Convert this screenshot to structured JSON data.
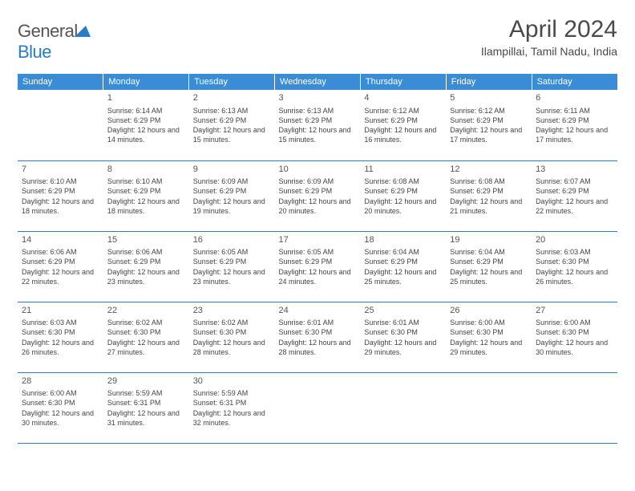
{
  "brand": {
    "text1": "General",
    "text2": "Blue"
  },
  "title": {
    "month": "April 2024",
    "location": "Ilampillai, Tamil Nadu, India"
  },
  "colors": {
    "header_bg": "#3a8cd6",
    "border": "#2a7cc7",
    "text": "#444444"
  },
  "typography": {
    "title_fontsize": 30,
    "header_fontsize": 11,
    "cell_fontsize": 9
  },
  "weekdays": [
    "Sunday",
    "Monday",
    "Tuesday",
    "Wednesday",
    "Thursday",
    "Friday",
    "Saturday"
  ],
  "rows": [
    [
      {
        "day": "",
        "sunrise": "",
        "sunset": "",
        "daylight": ""
      },
      {
        "day": "1",
        "sunrise": "Sunrise: 6:14 AM",
        "sunset": "Sunset: 6:29 PM",
        "daylight": "Daylight: 12 hours and 14 minutes."
      },
      {
        "day": "2",
        "sunrise": "Sunrise: 6:13 AM",
        "sunset": "Sunset: 6:29 PM",
        "daylight": "Daylight: 12 hours and 15 minutes."
      },
      {
        "day": "3",
        "sunrise": "Sunrise: 6:13 AM",
        "sunset": "Sunset: 6:29 PM",
        "daylight": "Daylight: 12 hours and 15 minutes."
      },
      {
        "day": "4",
        "sunrise": "Sunrise: 6:12 AM",
        "sunset": "Sunset: 6:29 PM",
        "daylight": "Daylight: 12 hours and 16 minutes."
      },
      {
        "day": "5",
        "sunrise": "Sunrise: 6:12 AM",
        "sunset": "Sunset: 6:29 PM",
        "daylight": "Daylight: 12 hours and 17 minutes."
      },
      {
        "day": "6",
        "sunrise": "Sunrise: 6:11 AM",
        "sunset": "Sunset: 6:29 PM",
        "daylight": "Daylight: 12 hours and 17 minutes."
      }
    ],
    [
      {
        "day": "7",
        "sunrise": "Sunrise: 6:10 AM",
        "sunset": "Sunset: 6:29 PM",
        "daylight": "Daylight: 12 hours and 18 minutes."
      },
      {
        "day": "8",
        "sunrise": "Sunrise: 6:10 AM",
        "sunset": "Sunset: 6:29 PM",
        "daylight": "Daylight: 12 hours and 18 minutes."
      },
      {
        "day": "9",
        "sunrise": "Sunrise: 6:09 AM",
        "sunset": "Sunset: 6:29 PM",
        "daylight": "Daylight: 12 hours and 19 minutes."
      },
      {
        "day": "10",
        "sunrise": "Sunrise: 6:09 AM",
        "sunset": "Sunset: 6:29 PM",
        "daylight": "Daylight: 12 hours and 20 minutes."
      },
      {
        "day": "11",
        "sunrise": "Sunrise: 6:08 AM",
        "sunset": "Sunset: 6:29 PM",
        "daylight": "Daylight: 12 hours and 20 minutes."
      },
      {
        "day": "12",
        "sunrise": "Sunrise: 6:08 AM",
        "sunset": "Sunset: 6:29 PM",
        "daylight": "Daylight: 12 hours and 21 minutes."
      },
      {
        "day": "13",
        "sunrise": "Sunrise: 6:07 AM",
        "sunset": "Sunset: 6:29 PM",
        "daylight": "Daylight: 12 hours and 22 minutes."
      }
    ],
    [
      {
        "day": "14",
        "sunrise": "Sunrise: 6:06 AM",
        "sunset": "Sunset: 6:29 PM",
        "daylight": "Daylight: 12 hours and 22 minutes."
      },
      {
        "day": "15",
        "sunrise": "Sunrise: 6:06 AM",
        "sunset": "Sunset: 6:29 PM",
        "daylight": "Daylight: 12 hours and 23 minutes."
      },
      {
        "day": "16",
        "sunrise": "Sunrise: 6:05 AM",
        "sunset": "Sunset: 6:29 PM",
        "daylight": "Daylight: 12 hours and 23 minutes."
      },
      {
        "day": "17",
        "sunrise": "Sunrise: 6:05 AM",
        "sunset": "Sunset: 6:29 PM",
        "daylight": "Daylight: 12 hours and 24 minutes."
      },
      {
        "day": "18",
        "sunrise": "Sunrise: 6:04 AM",
        "sunset": "Sunset: 6:29 PM",
        "daylight": "Daylight: 12 hours and 25 minutes."
      },
      {
        "day": "19",
        "sunrise": "Sunrise: 6:04 AM",
        "sunset": "Sunset: 6:29 PM",
        "daylight": "Daylight: 12 hours and 25 minutes."
      },
      {
        "day": "20",
        "sunrise": "Sunrise: 6:03 AM",
        "sunset": "Sunset: 6:30 PM",
        "daylight": "Daylight: 12 hours and 26 minutes."
      }
    ],
    [
      {
        "day": "21",
        "sunrise": "Sunrise: 6:03 AM",
        "sunset": "Sunset: 6:30 PM",
        "daylight": "Daylight: 12 hours and 26 minutes."
      },
      {
        "day": "22",
        "sunrise": "Sunrise: 6:02 AM",
        "sunset": "Sunset: 6:30 PM",
        "daylight": "Daylight: 12 hours and 27 minutes."
      },
      {
        "day": "23",
        "sunrise": "Sunrise: 6:02 AM",
        "sunset": "Sunset: 6:30 PM",
        "daylight": "Daylight: 12 hours and 28 minutes."
      },
      {
        "day": "24",
        "sunrise": "Sunrise: 6:01 AM",
        "sunset": "Sunset: 6:30 PM",
        "daylight": "Daylight: 12 hours and 28 minutes."
      },
      {
        "day": "25",
        "sunrise": "Sunrise: 6:01 AM",
        "sunset": "Sunset: 6:30 PM",
        "daylight": "Daylight: 12 hours and 29 minutes."
      },
      {
        "day": "26",
        "sunrise": "Sunrise: 6:00 AM",
        "sunset": "Sunset: 6:30 PM",
        "daylight": "Daylight: 12 hours and 29 minutes."
      },
      {
        "day": "27",
        "sunrise": "Sunrise: 6:00 AM",
        "sunset": "Sunset: 6:30 PM",
        "daylight": "Daylight: 12 hours and 30 minutes."
      }
    ],
    [
      {
        "day": "28",
        "sunrise": "Sunrise: 6:00 AM",
        "sunset": "Sunset: 6:30 PM",
        "daylight": "Daylight: 12 hours and 30 minutes."
      },
      {
        "day": "29",
        "sunrise": "Sunrise: 5:59 AM",
        "sunset": "Sunset: 6:31 PM",
        "daylight": "Daylight: 12 hours and 31 minutes."
      },
      {
        "day": "30",
        "sunrise": "Sunrise: 5:59 AM",
        "sunset": "Sunset: 6:31 PM",
        "daylight": "Daylight: 12 hours and 32 minutes."
      },
      {
        "day": "",
        "sunrise": "",
        "sunset": "",
        "daylight": ""
      },
      {
        "day": "",
        "sunrise": "",
        "sunset": "",
        "daylight": ""
      },
      {
        "day": "",
        "sunrise": "",
        "sunset": "",
        "daylight": ""
      },
      {
        "day": "",
        "sunrise": "",
        "sunset": "",
        "daylight": ""
      }
    ]
  ]
}
